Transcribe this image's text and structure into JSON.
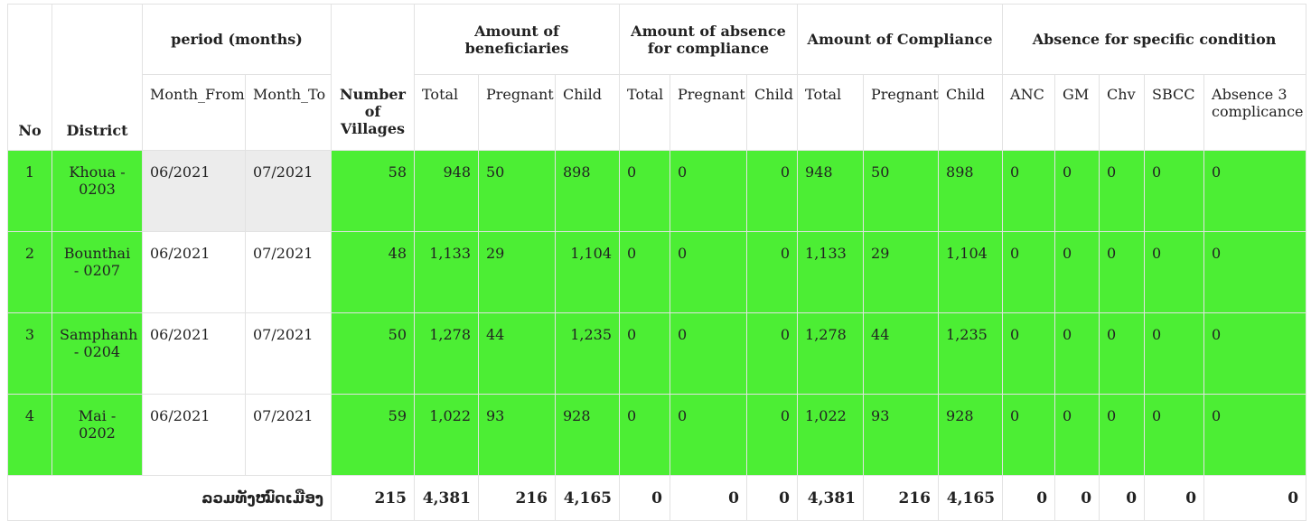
{
  "headers": {
    "no": "No",
    "district": "District",
    "period": "period (months)",
    "month_from": "Month_From",
    "month_to": "Month_To",
    "villages_line1": "Number",
    "villages_line2": "of Villages",
    "beneficiaries": "Amount of beneficiaries",
    "absence_compliance": "Amount of absence for compliance",
    "compliance": "Amount of Compliance",
    "absence_specific": "Absence for specific condition",
    "total": "Total",
    "pregnant": "Pregnant",
    "child": "Child",
    "anc": "ANC",
    "gm": "GM",
    "chv": "Chv",
    "sbcc": "SBCC",
    "absence3": "Absence 3 complicance"
  },
  "rows": [
    {
      "no": "1",
      "district": "Khoua - 0203",
      "from": "06/2021",
      "to": "07/2021",
      "villages": "58",
      "b_total": "948",
      "b_preg": "50",
      "b_child": "898",
      "a_total": "0",
      "a_preg": "0",
      "a_child": "0",
      "c_total": "948",
      "c_preg": "50",
      "c_child": "898",
      "anc": "0",
      "gm": "0",
      "chv": "0",
      "sbcc": "0",
      "abs3": "0"
    },
    {
      "no": "2",
      "district": "Bounthai - 0207",
      "from": "06/2021",
      "to": "07/2021",
      "villages": "48",
      "b_total": "1,133",
      "b_preg": "29",
      "b_child": "1,104",
      "a_total": "0",
      "a_preg": "0",
      "a_child": "0",
      "c_total": "1,133",
      "c_preg": "29",
      "c_child": "1,104",
      "anc": "0",
      "gm": "0",
      "chv": "0",
      "sbcc": "0",
      "abs3": "0"
    },
    {
      "no": "3",
      "district": "Samphanh - 0204",
      "from": "06/2021",
      "to": "07/2021",
      "villages": "50",
      "b_total": "1,278",
      "b_preg": "44",
      "b_child": "1,235",
      "a_total": "0",
      "a_preg": "0",
      "a_child": "0",
      "c_total": "1,278",
      "c_preg": "44",
      "c_child": "1,235",
      "anc": "0",
      "gm": "0",
      "chv": "0",
      "sbcc": "0",
      "abs3": "0"
    },
    {
      "no": "4",
      "district": "Mai - 0202",
      "from": "06/2021",
      "to": "07/2021",
      "villages": "59",
      "b_total": "1,022",
      "b_preg": "93",
      "b_child": "928",
      "a_total": "0",
      "a_preg": "0",
      "a_child": "0",
      "c_total": "1,022",
      "c_preg": "93",
      "c_child": "928",
      "anc": "0",
      "gm": "0",
      "chv": "0",
      "sbcc": "0",
      "abs3": "0"
    }
  ],
  "totals": {
    "label": "ລວມທັງໝົດເມືອງ",
    "villages": "215",
    "b_total": "4,381",
    "b_preg": "216",
    "b_child": "4,165",
    "a_total": "0",
    "a_preg": "0",
    "a_child": "0",
    "c_total": "4,381",
    "c_preg": "216",
    "c_child": "4,165",
    "anc": "0",
    "gm": "0",
    "chv": "0",
    "sbcc": "0",
    "abs3": "0"
  },
  "colors": {
    "row_green": "#4cee34",
    "row_gray": "#ececec"
  }
}
